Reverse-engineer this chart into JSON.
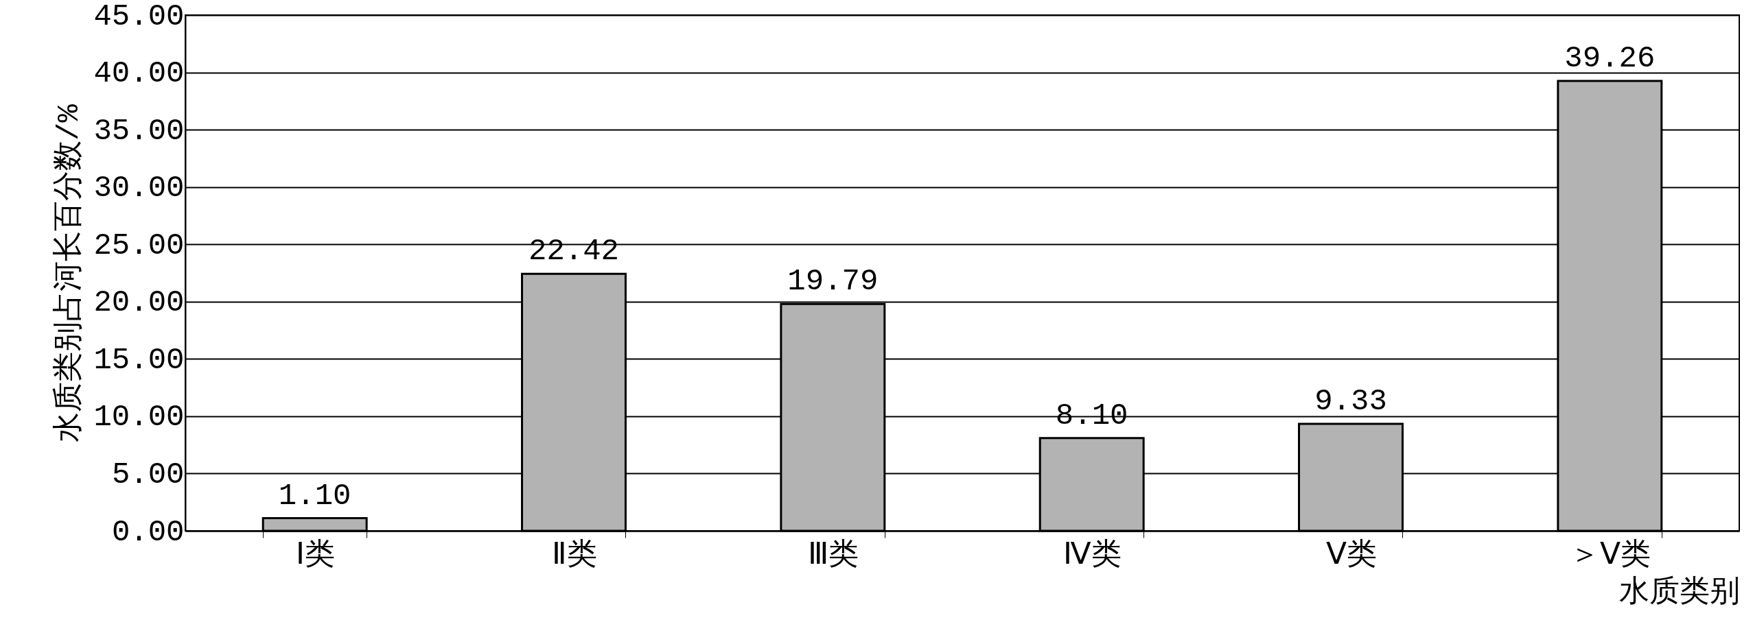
{
  "chart_data": {
    "type": "bar",
    "xlabel": "水质类别",
    "ylabel": "水质类别占河长百分数/%",
    "categories": [
      "Ⅰ类",
      "Ⅱ类",
      "Ⅲ类",
      "Ⅳ类",
      "Ⅴ类",
      "＞Ⅴ类"
    ],
    "values": [
      1.1,
      22.42,
      19.79,
      8.1,
      9.33,
      39.26
    ],
    "value_labels": [
      "1.10",
      "22.42",
      "19.79",
      "8.10",
      "9.33",
      "39.26"
    ],
    "color": "#b3b3b3",
    "ylim": [
      0,
      45
    ],
    "yticks": [
      {
        "value": 0,
        "label": "0.00"
      },
      {
        "value": 5,
        "label": "5.00"
      },
      {
        "value": 10,
        "label": "10.00"
      },
      {
        "value": 15,
        "label": "15.00"
      },
      {
        "value": 20,
        "label": "20.00"
      },
      {
        "value": 25,
        "label": "25.00"
      },
      {
        "value": 30,
        "label": "30.00"
      },
      {
        "value": 35,
        "label": "35.00"
      },
      {
        "value": 40,
        "label": "40.00"
      },
      {
        "value": 45,
        "label": "45.00"
      }
    ],
    "grid": "y"
  }
}
